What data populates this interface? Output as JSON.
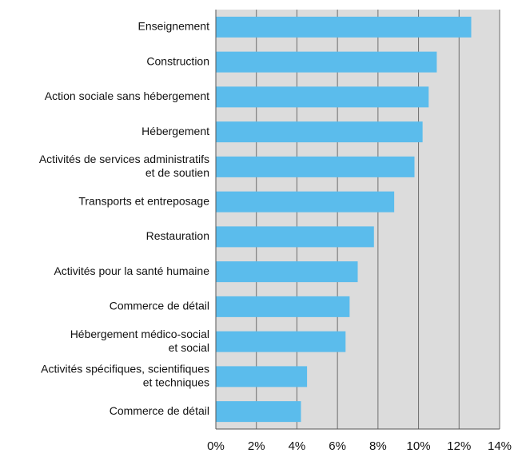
{
  "chart_data": {
    "type": "bar",
    "orientation": "horizontal",
    "categories": [
      [
        "Enseignement"
      ],
      [
        "Construction"
      ],
      [
        "Action sociale sans hébergement"
      ],
      [
        "Hébergement"
      ],
      [
        "Activités de services administratifs",
        "et de soutien"
      ],
      [
        "Transports et entreposage"
      ],
      [
        "Restauration"
      ],
      [
        "Activités pour la santé humaine"
      ],
      [
        "Commerce de détail"
      ],
      [
        "Hébergement médico-social",
        "et social"
      ],
      [
        "Activités spécifiques, scientifiques",
        "et techniques"
      ],
      [
        "Commerce de détail"
      ]
    ],
    "values": [
      12.6,
      10.9,
      10.5,
      10.2,
      9.8,
      8.8,
      7.8,
      7.0,
      6.6,
      6.4,
      4.5,
      4.2
    ],
    "xlim": [
      0,
      14
    ],
    "xticks": [
      "0%",
      "2%",
      "4%",
      "6%",
      "8%",
      "10%",
      "12%",
      "14%"
    ],
    "grid": true,
    "colors": {
      "bar": "#5bbcec",
      "plot_background": "#dcdcdc",
      "grid": "#6e6e6e"
    }
  }
}
